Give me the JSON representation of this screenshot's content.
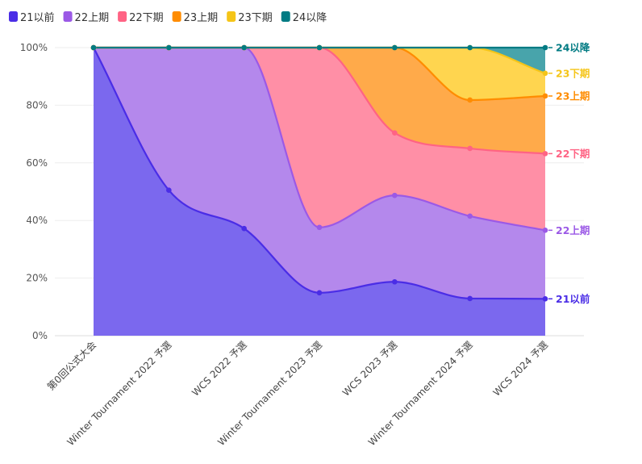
{
  "chart_data": {
    "type": "area",
    "stacked": true,
    "normalized": true,
    "categories": [
      "第0回公式大会",
      "Winter Tournament 2022 予選",
      "WCS 2022 予選",
      "Winter Tournament 2023 予選",
      "WCS 2023 予選",
      "Winter Tournament 2024 予選",
      "WCS 2024 予選"
    ],
    "series": [
      {
        "name": "21以前",
        "color": "#4a2de6",
        "fill": "#7b68ee",
        "values": [
          100,
          50.5,
          37.2,
          14.9,
          18.7,
          12.9,
          12.8
        ]
      },
      {
        "name": "22上期",
        "color": "#9b59e6",
        "fill": "#b488ec",
        "values": [
          0,
          49.5,
          62.8,
          22.7,
          30.0,
          28.6,
          23.8
        ]
      },
      {
        "name": "22下期",
        "color": "#ff6384",
        "fill": "#ff8fa6",
        "values": [
          0,
          0,
          0,
          62.4,
          21.7,
          23.5,
          26.6
        ]
      },
      {
        "name": "23上期",
        "color": "#ff8c00",
        "fill": "#ffaa4a",
        "values": [
          0,
          0,
          0,
          0,
          29.6,
          16.8,
          20.0
        ]
      },
      {
        "name": "23下期",
        "color": "#f5c518",
        "fill": "#ffd54f",
        "values": [
          0,
          0,
          0,
          0,
          0,
          18.2,
          7.9
        ]
      },
      {
        "name": "24以降",
        "color": "#007b83",
        "fill": "#48a4ab",
        "values": [
          0,
          0,
          0,
          0,
          0,
          0,
          8.9
        ]
      }
    ],
    "y_ticks": [
      "0%",
      "20%",
      "40%",
      "60%",
      "80%",
      "100%"
    ],
    "ylim": [
      0,
      100
    ],
    "grid": true,
    "legend_position": "top-left"
  }
}
